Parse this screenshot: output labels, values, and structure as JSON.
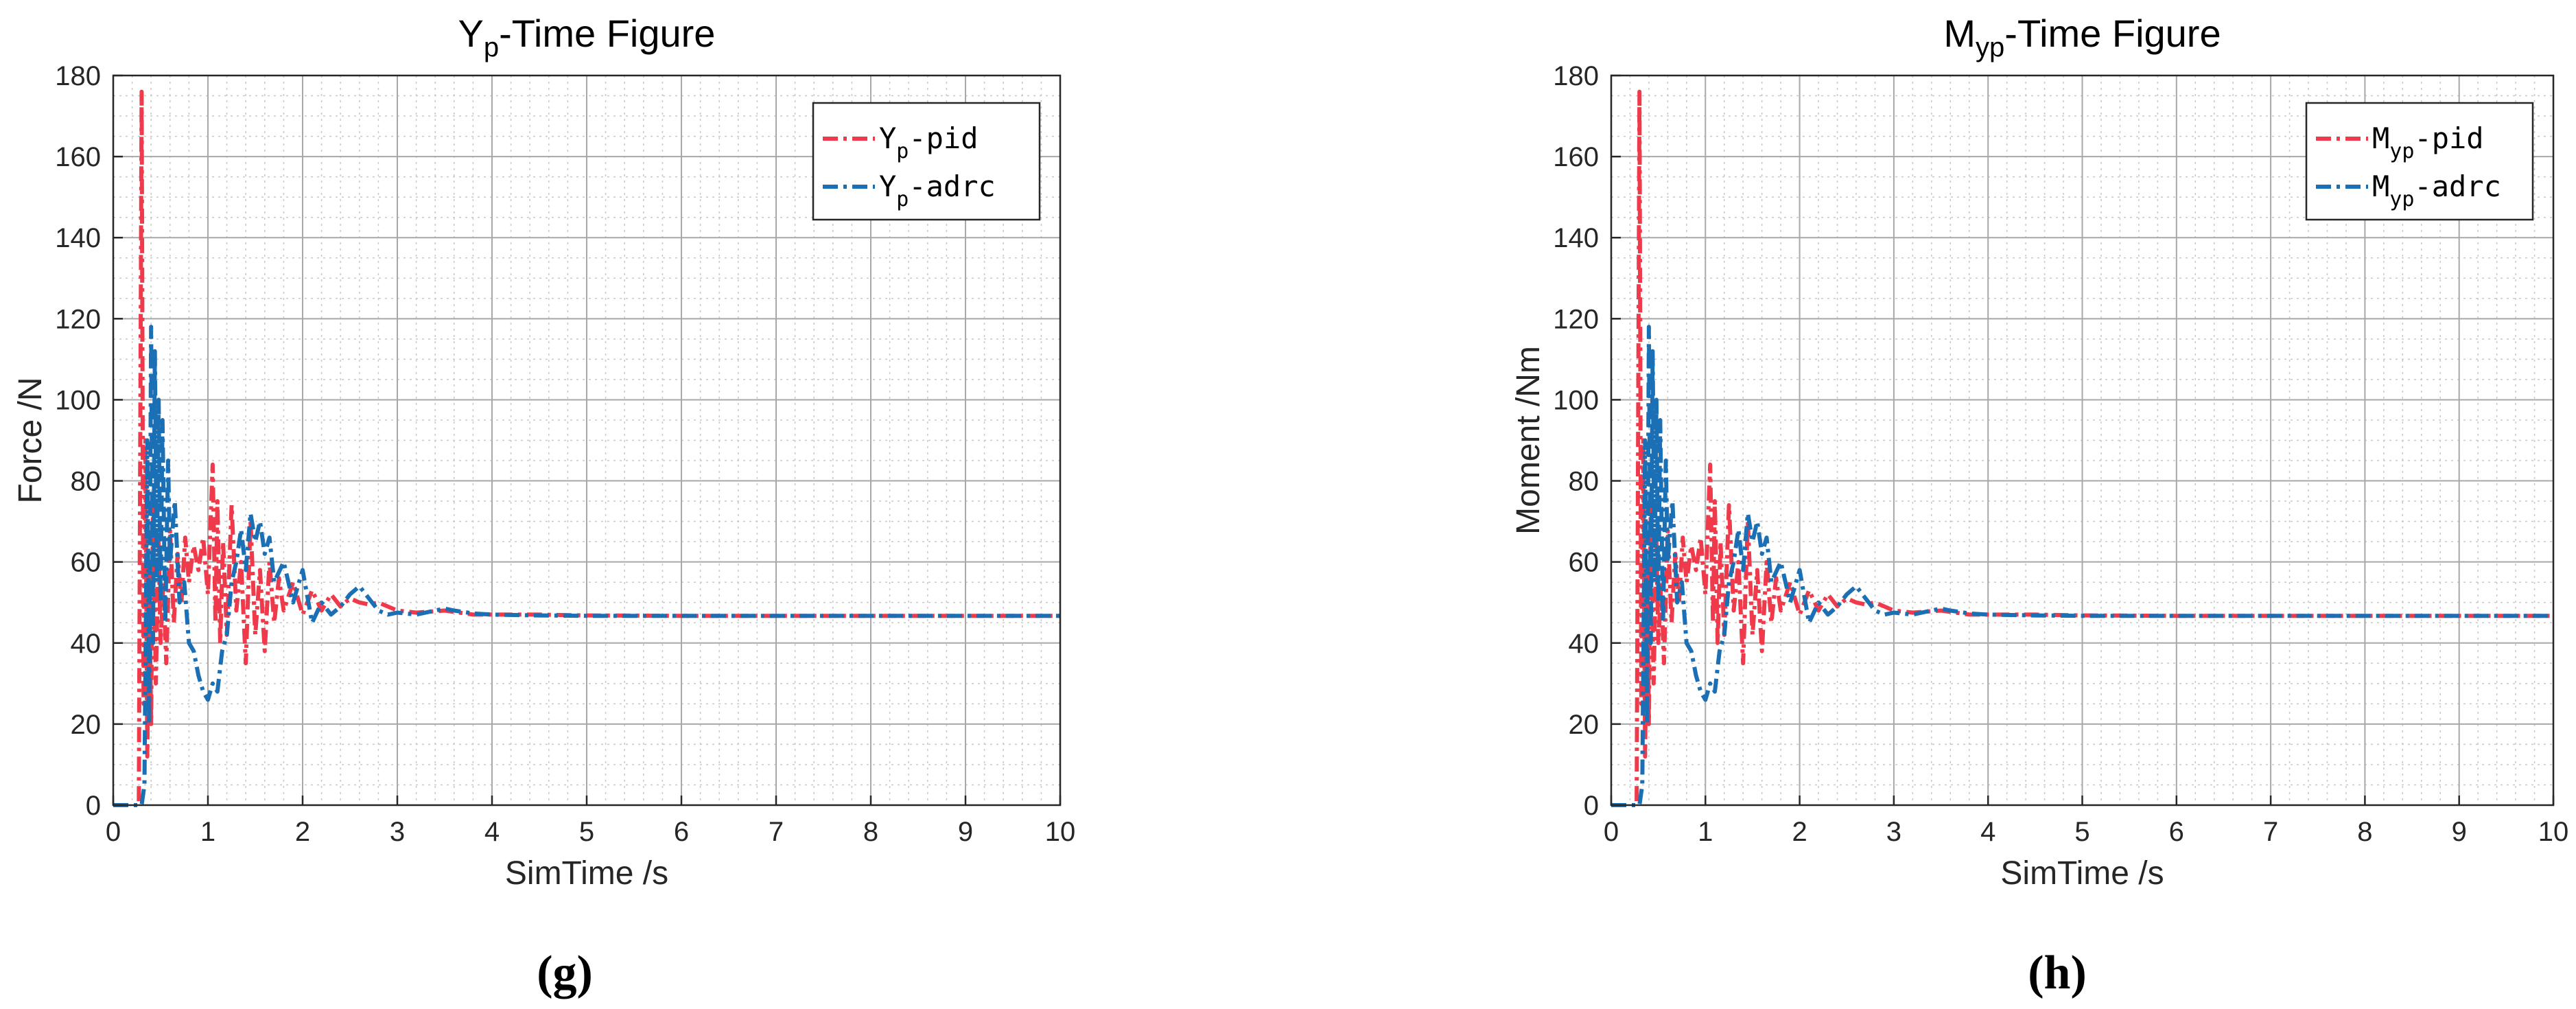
{
  "chart_data": [
    {
      "type": "line",
      "title": "Y_p-Time Figure",
      "title_parts": {
        "main": "Y",
        "sub": "p",
        "suffix": "-Time Figure"
      },
      "xlabel": "SimTime /s",
      "ylabel": "Force /N",
      "xlim": [
        0,
        10
      ],
      "ylim": [
        0,
        180
      ],
      "xticks": [
        "0",
        "1",
        "2",
        "3",
        "4",
        "5",
        "6",
        "7",
        "8",
        "9",
        "10"
      ],
      "yticks": [
        "0",
        "20",
        "40",
        "60",
        "80",
        "100",
        "120",
        "140",
        "160",
        "180"
      ],
      "grid": true,
      "minor_grid": true,
      "legend_position": "top-right",
      "panel_label": "(g)",
      "series": [
        {
          "name": "Y_p-pid",
          "legend_parts": {
            "main": "Y",
            "sub": "p",
            "suffix": "-pid"
          },
          "color": "#ee3a4a",
          "x": [
            0,
            0.27,
            0.3,
            0.31,
            0.32,
            0.34,
            0.36,
            0.38,
            0.4,
            0.42,
            0.45,
            0.48,
            0.5,
            0.53,
            0.56,
            0.6,
            0.64,
            0.68,
            0.72,
            0.76,
            0.8,
            0.85,
            0.9,
            0.95,
            1.0,
            1.05,
            1.08,
            1.1,
            1.13,
            1.16,
            1.2,
            1.25,
            1.3,
            1.35,
            1.4,
            1.45,
            1.5,
            1.55,
            1.6,
            1.65,
            1.7,
            1.75,
            1.8,
            1.9,
            2.0,
            2.1,
            2.2,
            2.3,
            2.4,
            2.5,
            2.6,
            2.7,
            2.8,
            3.0,
            3.2,
            3.5,
            3.8,
            4.0,
            4.5,
            5.0,
            6.0,
            7.0,
            8.0,
            9.0,
            10.0
          ],
          "y": [
            0,
            0,
            176,
            100,
            25,
            90,
            12,
            60,
            20,
            75,
            30,
            65,
            40,
            55,
            35,
            68,
            45,
            62,
            50,
            66,
            55,
            64,
            58,
            66,
            52,
            84,
            45,
            75,
            40,
            65,
            42,
            74,
            48,
            60,
            35,
            70,
            42,
            58,
            38,
            60,
            45,
            56,
            48,
            55,
            47,
            53,
            48,
            52,
            49,
            51,
            50,
            49.5,
            50,
            48,
            47.5,
            48,
            47,
            47,
            47,
            46.8,
            46.7,
            46.7,
            46.7,
            46.7,
            46.7
          ]
        },
        {
          "name": "Y_p-adrc",
          "legend_parts": {
            "main": "Y",
            "sub": "p",
            "suffix": "-adrc"
          },
          "color": "#1a6fb5",
          "x": [
            0,
            0.3,
            0.33,
            0.36,
            0.38,
            0.4,
            0.42,
            0.44,
            0.46,
            0.48,
            0.5,
            0.52,
            0.55,
            0.58,
            0.6,
            0.65,
            0.7,
            0.75,
            0.8,
            0.85,
            0.9,
            0.95,
            1.0,
            1.05,
            1.1,
            1.15,
            1.2,
            1.25,
            1.3,
            1.35,
            1.4,
            1.45,
            1.5,
            1.55,
            1.6,
            1.65,
            1.7,
            1.8,
            1.9,
            2.0,
            2.1,
            2.2,
            2.3,
            2.4,
            2.5,
            2.6,
            2.7,
            2.8,
            2.9,
            3.0,
            3.2,
            3.4,
            3.5,
            3.6,
            3.8,
            4.0,
            4.5,
            5.0,
            6.0,
            7.0,
            8.0,
            9.0,
            10.0
          ],
          "y": [
            0,
            0,
            5,
            90,
            20,
            118,
            40,
            112,
            55,
            100,
            50,
            95,
            45,
            85,
            60,
            75,
            50,
            55,
            40,
            38,
            32,
            28,
            26,
            30,
            28,
            38,
            42,
            55,
            60,
            68,
            58,
            72,
            65,
            70,
            62,
            66,
            55,
            60,
            50,
            58,
            45,
            50,
            47,
            49,
            52,
            54,
            51,
            48,
            47,
            47.5,
            47,
            48,
            48.5,
            48,
            47.3,
            47,
            46.8,
            46.7,
            46.7,
            46.7,
            46.7,
            46.7,
            46.7
          ]
        }
      ]
    },
    {
      "type": "line",
      "title": "M_yp-Time Figure",
      "title_parts": {
        "main": "M",
        "sub": "yp",
        "suffix": "-Time Figure"
      },
      "xlabel": "SimTime /s",
      "ylabel": "Moment /Nm",
      "xlim": [
        0,
        10
      ],
      "ylim": [
        0,
        180
      ],
      "xticks": [
        "0",
        "1",
        "2",
        "3",
        "4",
        "5",
        "6",
        "7",
        "8",
        "9",
        "10"
      ],
      "yticks": [
        "0",
        "20",
        "40",
        "60",
        "80",
        "100",
        "120",
        "140",
        "160",
        "180"
      ],
      "grid": true,
      "minor_grid": true,
      "legend_position": "top-right",
      "panel_label": "(h)",
      "series": [
        {
          "name": "M_yp-pid",
          "legend_parts": {
            "main": "M",
            "sub": "yp",
            "suffix": "-pid"
          },
          "color": "#ee3a4a",
          "x": [
            0,
            0.27,
            0.3,
            0.31,
            0.32,
            0.34,
            0.36,
            0.38,
            0.4,
            0.42,
            0.45,
            0.48,
            0.5,
            0.53,
            0.56,
            0.6,
            0.64,
            0.68,
            0.72,
            0.76,
            0.8,
            0.85,
            0.9,
            0.95,
            1.0,
            1.05,
            1.08,
            1.1,
            1.13,
            1.16,
            1.2,
            1.25,
            1.3,
            1.35,
            1.4,
            1.45,
            1.5,
            1.55,
            1.6,
            1.65,
            1.7,
            1.75,
            1.8,
            1.9,
            2.0,
            2.1,
            2.2,
            2.3,
            2.4,
            2.5,
            2.6,
            2.7,
            2.8,
            3.0,
            3.2,
            3.5,
            3.8,
            4.0,
            4.5,
            5.0,
            6.0,
            7.0,
            8.0,
            9.0,
            10.0
          ],
          "y": [
            0,
            0,
            176,
            100,
            25,
            90,
            12,
            60,
            20,
            75,
            30,
            65,
            40,
            55,
            35,
            68,
            45,
            62,
            50,
            66,
            55,
            64,
            58,
            66,
            52,
            84,
            45,
            75,
            40,
            65,
            42,
            74,
            48,
            60,
            35,
            70,
            42,
            58,
            38,
            60,
            45,
            56,
            48,
            55,
            47,
            53,
            48,
            52,
            49,
            51,
            50,
            49.5,
            50,
            48,
            47.5,
            48,
            47,
            47,
            47,
            46.8,
            46.7,
            46.7,
            46.7,
            46.7,
            46.7
          ]
        },
        {
          "name": "M_yp-adrc",
          "legend_parts": {
            "main": "M",
            "sub": "yp",
            "suffix": "-adrc"
          },
          "color": "#1a6fb5",
          "x": [
            0,
            0.3,
            0.33,
            0.36,
            0.38,
            0.4,
            0.42,
            0.44,
            0.46,
            0.48,
            0.5,
            0.52,
            0.55,
            0.58,
            0.6,
            0.65,
            0.7,
            0.75,
            0.8,
            0.85,
            0.9,
            0.95,
            1.0,
            1.05,
            1.1,
            1.15,
            1.2,
            1.25,
            1.3,
            1.35,
            1.4,
            1.45,
            1.5,
            1.55,
            1.6,
            1.65,
            1.7,
            1.8,
            1.9,
            2.0,
            2.1,
            2.2,
            2.3,
            2.4,
            2.5,
            2.6,
            2.7,
            2.8,
            2.9,
            3.0,
            3.2,
            3.4,
            3.5,
            3.6,
            3.8,
            4.0,
            4.5,
            5.0,
            6.0,
            7.0,
            8.0,
            9.0,
            10.0
          ],
          "y": [
            0,
            0,
            5,
            90,
            20,
            118,
            40,
            112,
            55,
            100,
            50,
            95,
            45,
            85,
            60,
            75,
            50,
            55,
            40,
            38,
            32,
            28,
            26,
            30,
            28,
            38,
            42,
            55,
            60,
            68,
            58,
            72,
            65,
            70,
            62,
            66,
            55,
            60,
            50,
            58,
            45,
            50,
            47,
            49,
            52,
            54,
            51,
            48,
            47,
            47.5,
            47,
            48,
            48.5,
            48,
            47.3,
            47,
            46.8,
            46.7,
            46.7,
            46.7,
            46.7,
            46.7,
            46.7
          ]
        }
      ]
    }
  ]
}
